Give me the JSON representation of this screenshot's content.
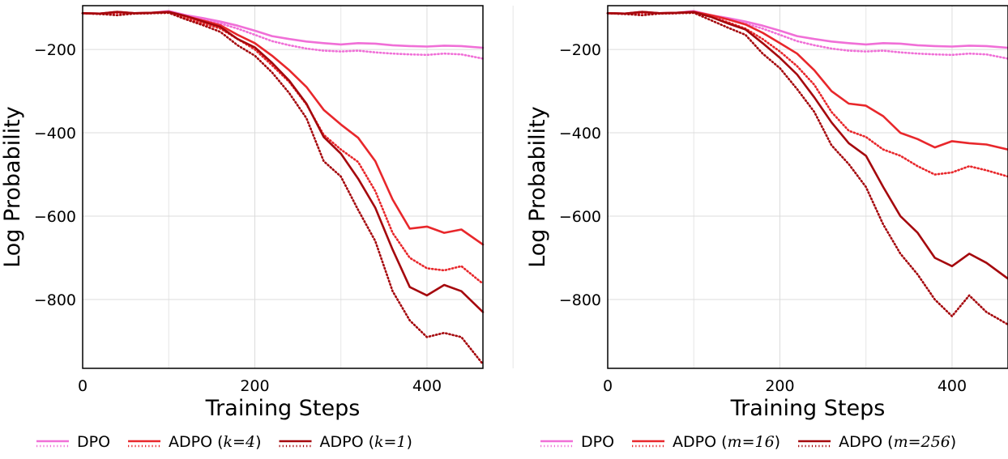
{
  "chart_data": [
    {
      "type": "line",
      "xlabel": "Training Steps",
      "ylabel": "Log Probability",
      "xlim": [
        0,
        465
      ],
      "ylim": [
        -965,
        -95
      ],
      "xticks": [
        0,
        200,
        400
      ],
      "yticks": [
        -200,
        -400,
        -600,
        -800
      ],
      "xtick_labels": [
        "0",
        "200",
        "400"
      ],
      "ytick_labels": [
        "−200",
        "−400",
        "−600",
        "−800"
      ],
      "grid": true,
      "legend_position": "bottom",
      "legend": [
        {
          "label": "DPO",
          "math": "",
          "color": "#f06fd7"
        },
        {
          "label": "ADPO (",
          "math": "k=4",
          "close": ")",
          "color": "#e8272b"
        },
        {
          "label": "ADPO (",
          "math": "k=1",
          "close": ")",
          "color": "#a5080d"
        }
      ],
      "series": [
        {
          "name": "DPO",
          "style": "solid",
          "color": "#f06fd7",
          "x": [
            0,
            20,
            40,
            60,
            80,
            100,
            120,
            140,
            160,
            180,
            200,
            220,
            240,
            260,
            280,
            300,
            320,
            340,
            360,
            380,
            400,
            420,
            440,
            465
          ],
          "y": [
            -113,
            -114,
            -110,
            -113,
            -112,
            -108,
            -118,
            -125,
            -133,
            -143,
            -155,
            -168,
            -175,
            -181,
            -185,
            -188,
            -185,
            -186,
            -190,
            -192,
            -193,
            -191,
            -192,
            -196
          ]
        },
        {
          "name": "DPO",
          "style": "dotted",
          "color": "#f06fd7",
          "x": [
            0,
            20,
            40,
            60,
            80,
            100,
            120,
            140,
            160,
            180,
            200,
            220,
            240,
            260,
            280,
            300,
            320,
            340,
            360,
            380,
            400,
            420,
            440,
            465
          ],
          "y": [
            -113,
            -115,
            -112,
            -114,
            -113,
            -110,
            -120,
            -128,
            -138,
            -150,
            -165,
            -180,
            -190,
            -198,
            -203,
            -205,
            -203,
            -207,
            -210,
            -212,
            -213,
            -210,
            -212,
            -222
          ]
        },
        {
          "name": "ADPO (k=4)",
          "style": "solid",
          "color": "#e8272b",
          "x": [
            0,
            20,
            40,
            60,
            80,
            100,
            120,
            140,
            160,
            180,
            200,
            220,
            240,
            260,
            280,
            300,
            320,
            340,
            360,
            380,
            400,
            420,
            440,
            465
          ],
          "y": [
            -113,
            -114,
            -110,
            -113,
            -112,
            -110,
            -120,
            -131,
            -142,
            -165,
            -185,
            -215,
            -250,
            -290,
            -345,
            -380,
            -412,
            -468,
            -560,
            -630,
            -625,
            -640,
            -632,
            -668
          ]
        },
        {
          "name": "ADPO (k=4)",
          "style": "dotted",
          "color": "#e8272b",
          "x": [
            0,
            20,
            40,
            60,
            80,
            100,
            120,
            140,
            160,
            180,
            200,
            220,
            240,
            260,
            280,
            300,
            320,
            340,
            360,
            380,
            400,
            420,
            440,
            465
          ],
          "y": [
            -113,
            -115,
            -112,
            -114,
            -113,
            -112,
            -125,
            -138,
            -150,
            -175,
            -200,
            -238,
            -278,
            -332,
            -405,
            -440,
            -470,
            -540,
            -640,
            -700,
            -725,
            -730,
            -720,
            -762
          ]
        },
        {
          "name": "ADPO (k=1)",
          "style": "solid",
          "color": "#a5080d",
          "x": [
            0,
            20,
            40,
            60,
            80,
            100,
            120,
            140,
            160,
            180,
            200,
            220,
            240,
            260,
            280,
            300,
            320,
            340,
            360,
            380,
            400,
            420,
            440,
            465
          ],
          "y": [
            -113,
            -114,
            -110,
            -113,
            -112,
            -110,
            -120,
            -133,
            -146,
            -175,
            -195,
            -232,
            -275,
            -330,
            -410,
            -450,
            -510,
            -580,
            -680,
            -770,
            -790,
            -765,
            -780,
            -830
          ]
        },
        {
          "name": "ADPO (k=1)",
          "style": "dotted",
          "color": "#a5080d",
          "x": [
            0,
            20,
            40,
            60,
            80,
            100,
            120,
            140,
            160,
            180,
            200,
            220,
            240,
            260,
            280,
            300,
            320,
            340,
            360,
            380,
            400,
            420,
            440,
            465
          ],
          "y": [
            -113,
            -115,
            -118,
            -114,
            -113,
            -112,
            -128,
            -142,
            -158,
            -190,
            -215,
            -255,
            -305,
            -365,
            -468,
            -505,
            -585,
            -660,
            -780,
            -850,
            -890,
            -880,
            -890,
            -955
          ]
        }
      ]
    },
    {
      "type": "line",
      "xlabel": "Training Steps",
      "ylabel": "Log Probability",
      "xlim": [
        0,
        465
      ],
      "ylim": [
        -965,
        -95
      ],
      "xticks": [
        0,
        200,
        400
      ],
      "yticks": [
        -200,
        -400,
        -600,
        -800
      ],
      "xtick_labels": [
        "0",
        "200",
        "400"
      ],
      "ytick_labels": [
        "−200",
        "−400",
        "−600",
        "−800"
      ],
      "grid": true,
      "legend_position": "bottom",
      "legend": [
        {
          "label": "DPO",
          "math": "",
          "color": "#f06fd7"
        },
        {
          "label": "ADPO (",
          "math": "m=16",
          "close": ")",
          "color": "#e8272b"
        },
        {
          "label": "ADPO (",
          "math": "m=256",
          "close": ")",
          "color": "#a5080d"
        }
      ],
      "series": [
        {
          "name": "DPO",
          "style": "solid",
          "color": "#f06fd7",
          "x": [
            0,
            20,
            40,
            60,
            80,
            100,
            120,
            140,
            160,
            180,
            200,
            220,
            240,
            260,
            280,
            300,
            320,
            340,
            360,
            380,
            400,
            420,
            440,
            465
          ],
          "y": [
            -113,
            -114,
            -110,
            -113,
            -112,
            -108,
            -118,
            -125,
            -133,
            -143,
            -155,
            -168,
            -175,
            -181,
            -185,
            -188,
            -185,
            -186,
            -190,
            -192,
            -193,
            -191,
            -192,
            -196
          ]
        },
        {
          "name": "DPO",
          "style": "dotted",
          "color": "#f06fd7",
          "x": [
            0,
            20,
            40,
            60,
            80,
            100,
            120,
            140,
            160,
            180,
            200,
            220,
            240,
            260,
            280,
            300,
            320,
            340,
            360,
            380,
            400,
            420,
            440,
            465
          ],
          "y": [
            -113,
            -115,
            -112,
            -114,
            -113,
            -110,
            -120,
            -128,
            -138,
            -150,
            -165,
            -180,
            -190,
            -198,
            -203,
            -205,
            -203,
            -207,
            -210,
            -212,
            -213,
            -210,
            -212,
            -222
          ]
        },
        {
          "name": "ADPO (m=16)",
          "style": "solid",
          "color": "#e8272b",
          "x": [
            0,
            20,
            40,
            60,
            80,
            100,
            120,
            140,
            160,
            180,
            200,
            220,
            240,
            260,
            280,
            300,
            320,
            340,
            360,
            380,
            400,
            420,
            440,
            465
          ],
          "y": [
            -113,
            -114,
            -110,
            -113,
            -112,
            -110,
            -118,
            -128,
            -140,
            -160,
            -185,
            -210,
            -250,
            -300,
            -330,
            -335,
            -360,
            -400,
            -415,
            -435,
            -420,
            -425,
            -428,
            -440
          ]
        },
        {
          "name": "ADPO (m=16)",
          "style": "dotted",
          "color": "#e8272b",
          "x": [
            0,
            20,
            40,
            60,
            80,
            100,
            120,
            140,
            160,
            180,
            200,
            220,
            240,
            260,
            280,
            300,
            320,
            340,
            360,
            380,
            400,
            420,
            440,
            465
          ],
          "y": [
            -113,
            -115,
            -112,
            -114,
            -113,
            -112,
            -122,
            -135,
            -150,
            -175,
            -205,
            -240,
            -285,
            -350,
            -395,
            -410,
            -440,
            -455,
            -480,
            -500,
            -495,
            -480,
            -490,
            -505
          ]
        },
        {
          "name": "ADPO (m=256)",
          "style": "solid",
          "color": "#a5080d",
          "x": [
            0,
            20,
            40,
            60,
            80,
            100,
            120,
            140,
            160,
            180,
            200,
            220,
            240,
            260,
            280,
            300,
            320,
            340,
            360,
            380,
            400,
            420,
            440,
            465
          ],
          "y": [
            -113,
            -114,
            -110,
            -113,
            -112,
            -110,
            -122,
            -138,
            -152,
            -185,
            -220,
            -260,
            -315,
            -375,
            -425,
            -455,
            -530,
            -600,
            -640,
            -700,
            -720,
            -690,
            -712,
            -750
          ]
        },
        {
          "name": "ADPO (m=256)",
          "style": "dotted",
          "color": "#a5080d",
          "x": [
            0,
            20,
            40,
            60,
            80,
            100,
            120,
            140,
            160,
            180,
            200,
            220,
            240,
            260,
            280,
            300,
            320,
            340,
            360,
            380,
            400,
            420,
            440,
            465
          ],
          "y": [
            -113,
            -115,
            -118,
            -114,
            -113,
            -112,
            -130,
            -148,
            -165,
            -210,
            -245,
            -295,
            -350,
            -430,
            -475,
            -530,
            -620,
            -690,
            -740,
            -800,
            -840,
            -790,
            -830,
            -860
          ]
        }
      ]
    }
  ]
}
